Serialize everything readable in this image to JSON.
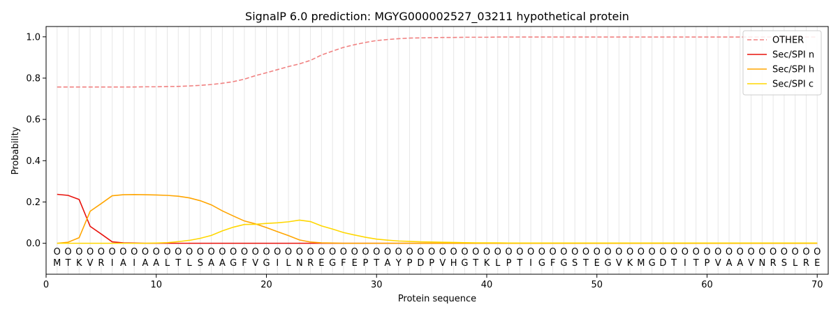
{
  "chart_data": {
    "type": "line",
    "title": "SignalP 6.0 prediction: MGYG000002527_03211 hypothetical protein",
    "xlabel": "Protein sequence",
    "ylabel": "Probability",
    "xlim": [
      0,
      71
    ],
    "ylim": [
      -0.15,
      1.05
    ],
    "xticks": [
      0,
      10,
      20,
      30,
      40,
      50,
      60,
      70
    ],
    "yticks": [
      0.0,
      0.2,
      0.4,
      0.6,
      0.8,
      1.0
    ],
    "ytick_labels": [
      "0.0",
      "0.2",
      "0.4",
      "0.6",
      "0.8",
      "1.0"
    ],
    "grid": "vertical lines at each residue",
    "legend_position": "top-right",
    "sequence": [
      "M",
      "T",
      "K",
      "V",
      "R",
      "I",
      "A",
      "I",
      "A",
      "A",
      "L",
      "T",
      "L",
      "S",
      "A",
      "A",
      "G",
      "F",
      "V",
      "G",
      "I",
      "L",
      "N",
      "R",
      "E",
      "G",
      "F",
      "E",
      "P",
      "T",
      "A",
      "Y",
      "P",
      "D",
      "P",
      "V",
      "H",
      "G",
      "T",
      "K",
      "L",
      "P",
      "T",
      "I",
      "G",
      "F",
      "G",
      "S",
      "T",
      "E",
      "G",
      "V",
      "K",
      "M",
      "G",
      "D",
      "T",
      "I",
      "T",
      "P",
      "V",
      "A",
      "A",
      "V",
      "N",
      "R",
      "S",
      "L",
      "R",
      "E"
    ],
    "state_marker": "O",
    "x": [
      1,
      2,
      3,
      4,
      5,
      6,
      7,
      8,
      9,
      10,
      11,
      12,
      13,
      14,
      15,
      16,
      17,
      18,
      19,
      20,
      21,
      22,
      23,
      24,
      25,
      26,
      27,
      28,
      29,
      30,
      31,
      32,
      33,
      34,
      35,
      36,
      37,
      38,
      39,
      40,
      41,
      42,
      43,
      44,
      45,
      46,
      47,
      48,
      49,
      50,
      51,
      52,
      53,
      54,
      55,
      56,
      57,
      58,
      59,
      60,
      61,
      62,
      63,
      64,
      65,
      66,
      67,
      68,
      69,
      70
    ],
    "series": [
      {
        "name": "OTHER",
        "color": "#f08080",
        "dash": true,
        "values": [
          0.757,
          0.757,
          0.757,
          0.757,
          0.757,
          0.757,
          0.757,
          0.757,
          0.758,
          0.758,
          0.759,
          0.76,
          0.762,
          0.765,
          0.769,
          0.775,
          0.783,
          0.795,
          0.812,
          0.826,
          0.841,
          0.856,
          0.869,
          0.886,
          0.912,
          0.931,
          0.949,
          0.962,
          0.973,
          0.982,
          0.987,
          0.991,
          0.994,
          0.995,
          0.996,
          0.997,
          0.997,
          0.998,
          0.998,
          0.998,
          0.999,
          0.999,
          0.999,
          0.999,
          0.999,
          0.999,
          0.999,
          0.999,
          0.999,
          0.999,
          0.999,
          0.999,
          0.999,
          0.999,
          0.999,
          0.999,
          0.999,
          0.999,
          0.999,
          0.999,
          0.999,
          0.999,
          0.999,
          0.999,
          0.999,
          0.999,
          0.999,
          0.999,
          0.999,
          0.999
        ]
      },
      {
        "name": "Sec/SPI n",
        "color": "#e8120c",
        "dash": false,
        "values": [
          0.237,
          0.232,
          0.212,
          0.082,
          0.045,
          0.007,
          0.002,
          0.001,
          0.0,
          0.0,
          0.0,
          0.0,
          0.0,
          0.0,
          0.0,
          0.0,
          0.0,
          0.0,
          0.0,
          0.0,
          0.0,
          0.0,
          0.0,
          0.0,
          0.0,
          0.0,
          0.0,
          0.0,
          0.0,
          0.0,
          0.0,
          0.0,
          0.0,
          0.0,
          0.0,
          0.0,
          0.0,
          0.0,
          0.0,
          0.0,
          0.0,
          0.0,
          0.0,
          0.0,
          0.0,
          0.0,
          0.0,
          0.0,
          0.0,
          0.0,
          0.0,
          0.0,
          0.0,
          0.0,
          0.0,
          0.0,
          0.0,
          0.0,
          0.0,
          0.0,
          0.0,
          0.0,
          0.0,
          0.0,
          0.0,
          0.0,
          0.0,
          0.0,
          0.0,
          0.0
        ]
      },
      {
        "name": "Sec/SPI h",
        "color": "#ffa500",
        "dash": false,
        "values": [
          0.0,
          0.005,
          0.027,
          0.155,
          0.192,
          0.23,
          0.235,
          0.236,
          0.235,
          0.234,
          0.232,
          0.228,
          0.22,
          0.206,
          0.186,
          0.157,
          0.132,
          0.108,
          0.094,
          0.076,
          0.056,
          0.037,
          0.016,
          0.006,
          0.002,
          0.001,
          0.0,
          0.0,
          0.0,
          0.0,
          0.0,
          0.0,
          0.0,
          0.0,
          0.0,
          0.0,
          0.0,
          0.0,
          0.0,
          0.0,
          0.0,
          0.0,
          0.0,
          0.0,
          0.0,
          0.0,
          0.0,
          0.0,
          0.0,
          0.0,
          0.0,
          0.0,
          0.0,
          0.0,
          0.0,
          0.0,
          0.0,
          0.0,
          0.0,
          0.0,
          0.0,
          0.0,
          0.0,
          0.0,
          0.0,
          0.0,
          0.0,
          0.0,
          0.0,
          0.0
        ]
      },
      {
        "name": "Sec/SPI c",
        "color": "#ffd700",
        "dash": false,
        "values": [
          0.0,
          0.0,
          0.0,
          0.0,
          0.0,
          0.0,
          0.0,
          0.0,
          0.0,
          0.001,
          0.003,
          0.008,
          0.014,
          0.024,
          0.038,
          0.06,
          0.078,
          0.091,
          0.092,
          0.096,
          0.099,
          0.104,
          0.112,
          0.105,
          0.084,
          0.069,
          0.052,
          0.04,
          0.029,
          0.02,
          0.015,
          0.011,
          0.009,
          0.007,
          0.006,
          0.005,
          0.004,
          0.003,
          0.002,
          0.002,
          0.002,
          0.001,
          0.001,
          0.001,
          0.001,
          0.001,
          0.001,
          0.001,
          0.001,
          0.001,
          0.001,
          0.001,
          0.001,
          0.001,
          0.001,
          0.001,
          0.001,
          0.001,
          0.001,
          0.001,
          0.001,
          0.001,
          0.001,
          0.001,
          0.001,
          0.001,
          0.001,
          0.001,
          0.001,
          0.001
        ]
      }
    ]
  }
}
